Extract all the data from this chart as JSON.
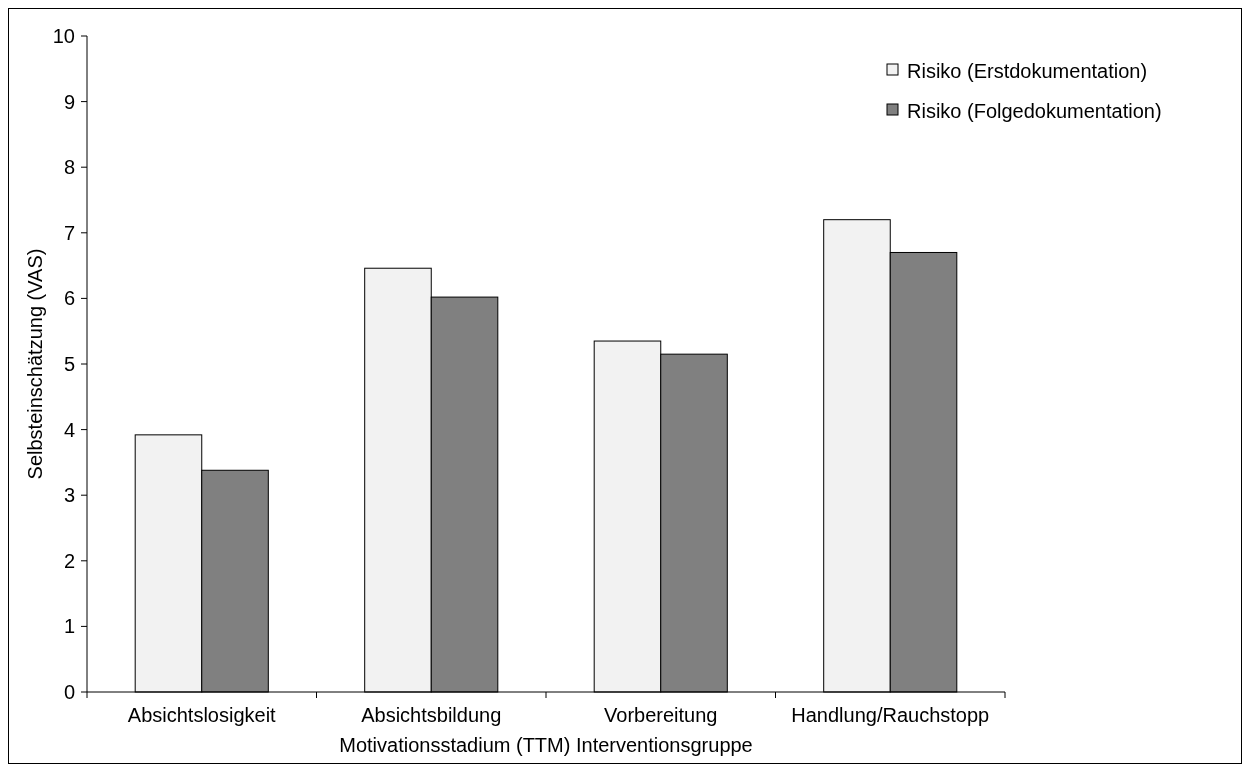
{
  "chart_data": {
    "type": "bar",
    "xlabel": "Motivationsstadium (TTM) Interventionsgruppe",
    "ylabel": "Selbsteinschätzung (VAS)",
    "categories": [
      "Absichtslosigkeit",
      "Absichtsbildung",
      "Vorbereitung",
      "Handlung/Rauchstopp"
    ],
    "series": [
      {
        "name": "Risiko (Erstdokumentation)",
        "color": "#f2f2f2",
        "values": [
          3.92,
          6.46,
          5.35,
          7.2
        ]
      },
      {
        "name": "Risiko (Folgedokumentation)",
        "color": "#808080",
        "values": [
          3.38,
          6.02,
          5.15,
          6.7
        ]
      }
    ],
    "ylim": [
      0,
      10
    ],
    "yticks": [
      0,
      1,
      2,
      3,
      4,
      5,
      6,
      7,
      8,
      9,
      10
    ],
    "legend": "top right"
  }
}
